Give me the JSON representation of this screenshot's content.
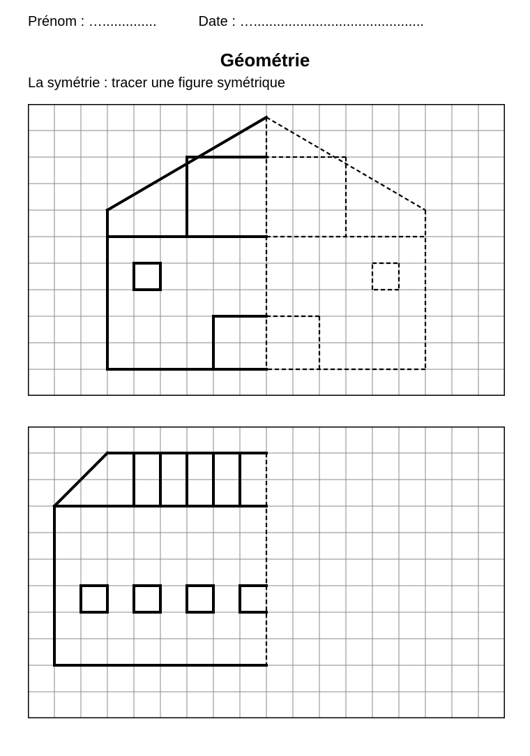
{
  "header": {
    "name_label": "Prénom :",
    "name_dots": "…..............",
    "date_label": "Date :",
    "date_dots": "…............................................"
  },
  "title": "Géométrie",
  "subtitle": "La symétrie : tracer une figure symétrique",
  "colors": {
    "grid": "#8a8a8a",
    "border": "#000000",
    "solid": "#000000",
    "dashed": "#000000",
    "bg": "#ffffff"
  },
  "grid1": {
    "cols": 18,
    "rows": 11,
    "cell": 38,
    "solid_width": 4,
    "dash_width": 2.2,
    "grid_width": 1,
    "dash_pattern": "6,4",
    "solid_segments": [
      [
        9,
        0.5,
        3,
        4
      ],
      [
        3,
        4,
        3,
        10
      ],
      [
        3,
        10,
        9,
        10
      ],
      [
        3,
        5,
        9,
        5
      ],
      [
        6,
        2,
        9,
        2
      ],
      [
        6,
        2,
        6,
        5
      ],
      [
        4,
        6,
        5,
        6
      ],
      [
        5,
        6,
        5,
        7
      ],
      [
        5,
        7,
        4,
        7
      ],
      [
        4,
        7,
        4,
        6
      ],
      [
        7,
        8,
        9,
        8
      ],
      [
        7,
        8,
        7,
        10
      ]
    ],
    "dashed_segments": [
      [
        9,
        0.5,
        9,
        10
      ],
      [
        9,
        0.5,
        15,
        4
      ],
      [
        15,
        4,
        15,
        10
      ],
      [
        15,
        10,
        9,
        10
      ],
      [
        9,
        5,
        15,
        5
      ],
      [
        12,
        2,
        9,
        2
      ],
      [
        12,
        2,
        12,
        5
      ],
      [
        13,
        6,
        14,
        6
      ],
      [
        14,
        6,
        14,
        7
      ],
      [
        14,
        7,
        13,
        7
      ],
      [
        13,
        7,
        13,
        6
      ],
      [
        11,
        8,
        9,
        8
      ],
      [
        11,
        8,
        11,
        10
      ]
    ]
  },
  "grid2": {
    "cols": 18,
    "rows": 11,
    "cell": 38,
    "solid_width": 4,
    "dash_width": 2.2,
    "grid_width": 1,
    "dash_pattern": "6,4",
    "solid_segments": [
      [
        3,
        1,
        9,
        1
      ],
      [
        1,
        3,
        3,
        1
      ],
      [
        1,
        3,
        9,
        3
      ],
      [
        1,
        3,
        1,
        9
      ],
      [
        1,
        9,
        9,
        9
      ],
      [
        4,
        1,
        4,
        3
      ],
      [
        5,
        1,
        5,
        3
      ],
      [
        6,
        1,
        6,
        3
      ],
      [
        7,
        1,
        7,
        3
      ],
      [
        8,
        1,
        8,
        3
      ],
      [
        2,
        6,
        3,
        6
      ],
      [
        3,
        6,
        3,
        7
      ],
      [
        3,
        7,
        2,
        7
      ],
      [
        2,
        7,
        2,
        6
      ],
      [
        4,
        6,
        5,
        6
      ],
      [
        5,
        6,
        5,
        7
      ],
      [
        5,
        7,
        4,
        7
      ],
      [
        4,
        7,
        4,
        6
      ],
      [
        6,
        6,
        7,
        6
      ],
      [
        7,
        6,
        7,
        7
      ],
      [
        7,
        7,
        6,
        7
      ],
      [
        6,
        7,
        6,
        6
      ],
      [
        8,
        6,
        9,
        6
      ],
      [
        8,
        6,
        8,
        7
      ],
      [
        8,
        7,
        9,
        7
      ]
    ],
    "dashed_segments": [
      [
        9,
        1,
        9,
        9
      ]
    ]
  }
}
